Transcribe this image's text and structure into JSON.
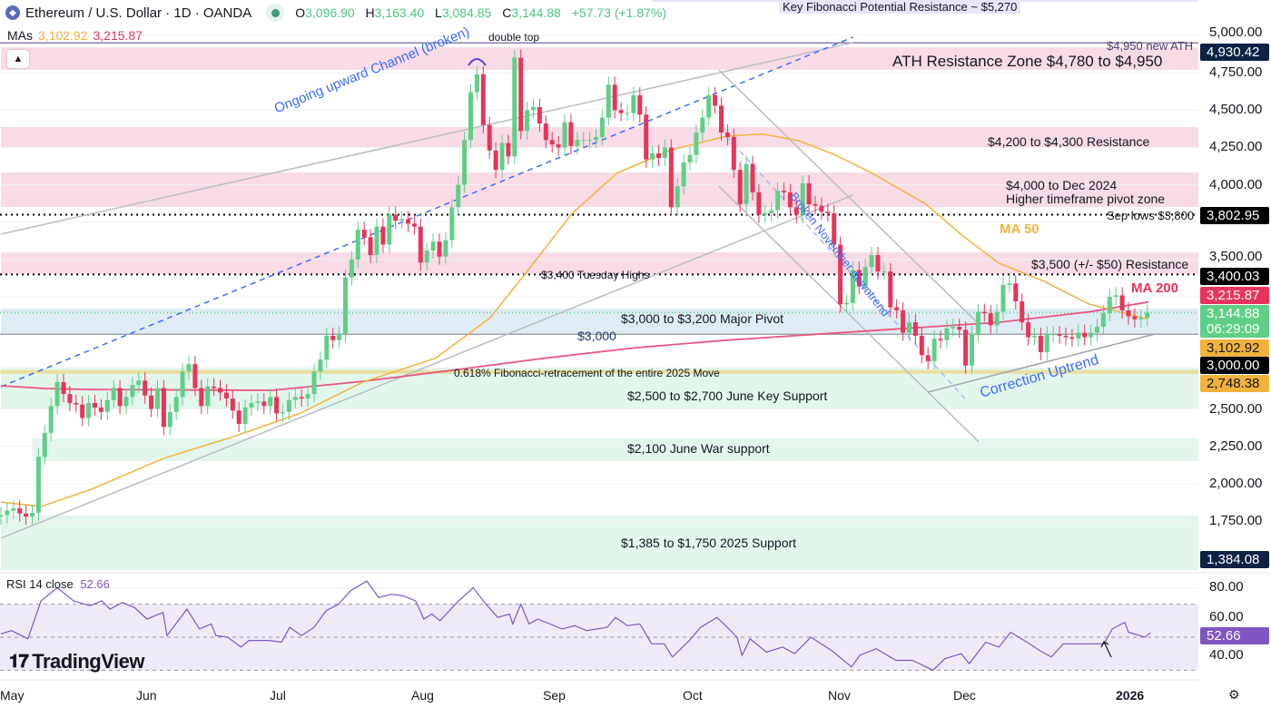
{
  "header": {
    "symbol": "Ethereum / U.S. Dollar · 1D · OANDA",
    "o_label": "O",
    "o": "3,096.90",
    "h_label": "H",
    "h": "3,163.40",
    "l_label": "L",
    "l": "3,084.85",
    "c_label": "C",
    "c": "3,144.88",
    "change": "+57.73 (+1.87%)",
    "mas_label": "MAs",
    "ma50": "3,102.92",
    "ma200": "3,215.87",
    "collapse_icon": "chevron-up-icon"
  },
  "annotations": {
    "fib_top": "Key Fibonacci Potential Resistance ~ $5,270",
    "ath_line": "$4,950 new ATH",
    "ath_zone": "ATH Resistance Zone $4,780 to $4,950",
    "double_top": "double top",
    "res_4200": "$4,200 to $4,300 Resistance",
    "pivot_4000_a": "$4,000 to Dec 2024",
    "pivot_4000_b": "Higher timeframe pivot zone",
    "sep_lows": "Sep lows $3,800",
    "ma50": "MA 50",
    "res_3500": "$3,500 (+/- $50) Resistance",
    "tuesday_highs": "$3,400 Tuesday Highs",
    "ma200": "MA 200",
    "major_pivot": "$3,000 to $3,200 Major Pivot",
    "line_3000": "$3,000",
    "fib_618": "0.618% Fibonacci-retracement of the entire 2025 Move",
    "june_support": "$2,500 to $2,700 June Key Support",
    "war_support": "$2,100 June War support",
    "support_2025": "$1,385 to $1,750 2025 Support",
    "channel": "Ongoing upward Channel (broken)",
    "nov_downtrend": "Broken November downtrend",
    "correction": "Correction Uptrend"
  },
  "price_axis": {
    "ticks": [
      "5,000.00",
      "4,750.00",
      "4,500.00",
      "4,250.00",
      "4,000.00",
      "3,500.00",
      "2,500.00",
      "2,250.00",
      "2,000.00",
      "1,750.00"
    ],
    "tags": [
      {
        "value": "4,930.42",
        "color": "#0d2244"
      },
      {
        "value": "3,802.95",
        "color": "#000000"
      },
      {
        "value": "3,400.03",
        "color": "#000000"
      },
      {
        "value": "3,215.87",
        "color": "#e8345a"
      },
      {
        "value": "3,144.88",
        "color": "#5fcf87",
        "sub": "06:29:09"
      },
      {
        "value": "3,102.92",
        "color": "#f2b33d",
        "dark": true
      },
      {
        "value": "3,000.00",
        "color": "#000000"
      },
      {
        "value": "2,748.38",
        "color": "#f2b33d",
        "dark": true
      },
      {
        "value": "1,384.08",
        "color": "#0d2244"
      }
    ]
  },
  "time_axis": [
    "May",
    "Jun",
    "Jul",
    "Aug",
    "Sep",
    "Oct",
    "Nov",
    "Dec",
    "2026"
  ],
  "rsi": {
    "label": "RSI 14 close",
    "value": "52.66",
    "ticks": [
      "80.00",
      "60.00",
      "40.00"
    ],
    "levels": [
      70,
      50,
      30
    ],
    "color": "#7e57c2"
  },
  "branding": {
    "logo": "TradingView"
  },
  "colors": {
    "up": "#5fcf87",
    "down": "#e8345a",
    "ma50": "#f2b33d",
    "ma200": "#e8577f",
    "drawing_blue": "#3d6bf5"
  },
  "chart_data": {
    "type": "candlestick",
    "title": "Ethereum / U.S. Dollar · 1D · OANDA",
    "ylim": [
      1250,
      5300
    ],
    "y_scale": "linear",
    "first_open": 1780,
    "closes": [
      1790,
      1820,
      1835,
      1800,
      1780,
      1805,
      2180,
      2340,
      2520,
      2680,
      2600,
      2540,
      2530,
      2440,
      2540,
      2510,
      2480,
      2560,
      2640,
      2520,
      2580,
      2660,
      2690,
      2590,
      2500,
      2640,
      2380,
      2480,
      2580,
      2750,
      2800,
      2640,
      2520,
      2650,
      2640,
      2610,
      2570,
      2490,
      2400,
      2510,
      2540,
      2550,
      2520,
      2580,
      2470,
      2480,
      2560,
      2580,
      2570,
      2600,
      2750,
      2830,
      2990,
      2960,
      3000,
      3380,
      3500,
      3700,
      3650,
      3530,
      3720,
      3600,
      3800,
      3760,
      3770,
      3740,
      3720,
      3480,
      3560,
      3620,
      3520,
      3630,
      3850,
      4000,
      4300,
      4620,
      4740,
      4400,
      4230,
      4100,
      4280,
      4190,
      4850,
      4360,
      4500,
      4520,
      4410,
      4300,
      4270,
      4250,
      4420,
      4260,
      4300,
      4300,
      4300,
      4320,
      4450,
      4670,
      4500,
      4480,
      4480,
      4600,
      4470,
      4170,
      4210,
      4180,
      4250,
      3850,
      3990,
      4150,
      4200,
      4350,
      4450,
      4600,
      4530,
      4350,
      4320,
      4100,
      3870,
      4140,
      3950,
      3800,
      3810,
      3830,
      3960,
      3950,
      3850,
      3800,
      4010,
      3870,
      3860,
      3820,
      3810,
      3600,
      3200,
      3210,
      3430,
      3320,
      3450,
      3530,
      3420,
      3420,
      3180,
      3160,
      3010,
      3080,
      2990,
      2860,
      2820,
      2970,
      2960,
      3040,
      3050,
      3030,
      2790,
      3000,
      3150,
      3140,
      3060,
      3150,
      3330,
      3340,
      3220,
      3080,
      2980,
      2990,
      2880,
      3000,
      3000,
      2990,
      2980,
      2970,
      3010,
      2980,
      3010,
      3050,
      3140,
      3250,
      3260,
      3160,
      3120,
      3100,
      3110,
      3145
    ],
    "ma50": [
      [
        0,
        1877
      ],
      [
        6.4,
        1847
      ],
      [
        14.3,
        1960
      ],
      [
        26,
        2170
      ],
      [
        37.5,
        2320
      ],
      [
        47.7,
        2470
      ],
      [
        57.8,
        2680
      ],
      [
        69.4,
        2840
      ],
      [
        78.1,
        3110
      ],
      [
        83.9,
        3415
      ],
      [
        91.2,
        3810
      ],
      [
        98.4,
        4080
      ],
      [
        107.1,
        4235
      ],
      [
        115.8,
        4325
      ],
      [
        121.6,
        4340
      ],
      [
        127.4,
        4295
      ],
      [
        133.2,
        4200
      ],
      [
        139,
        4080
      ],
      [
        147.7,
        3870
      ],
      [
        153.5,
        3660
      ],
      [
        159.3,
        3475
      ],
      [
        166.5,
        3355
      ],
      [
        173.8,
        3200
      ],
      [
        179.6,
        3140
      ],
      [
        183,
        3103
      ]
    ],
    "ma200": [
      [
        0,
        2655
      ],
      [
        7.1,
        2637
      ],
      [
        14.3,
        2630
      ],
      [
        43.3,
        2625
      ],
      [
        57.8,
        2685
      ],
      [
        72.3,
        2760
      ],
      [
        86.8,
        2840
      ],
      [
        101.3,
        2910
      ],
      [
        115.8,
        2960
      ],
      [
        130.3,
        3000
      ],
      [
        144.8,
        3040
      ],
      [
        159.3,
        3080
      ],
      [
        173.8,
        3150
      ],
      [
        183.2,
        3216
      ]
    ],
    "zones": [
      {
        "name": "fib-potential-resistance",
        "from_bar": 103.9,
        "top": 5290,
        "bottom": 5225,
        "color": "#e8e4fb"
      },
      {
        "name": "ath-resistance",
        "from_bar": 0,
        "top": 4920,
        "bottom": 4770,
        "color": "#f8dbe5"
      },
      {
        "name": "resistance-4200",
        "from_bar": 0,
        "top": 4386,
        "bottom": 4247,
        "color": "#f8dbe5"
      },
      {
        "name": "pivot-4000",
        "from_bar": 0,
        "top": 4083,
        "bottom": 3852,
        "color": "#f8dbe5"
      },
      {
        "name": "resistance-3500",
        "from_bar": 0,
        "top": 3548,
        "bottom": 3402,
        "color": "#f8dbe5"
      },
      {
        "name": "major-pivot",
        "from_bar": 0,
        "top": 3172,
        "bottom": 2995,
        "color": "#dfecf3"
      },
      {
        "name": "june-key-support",
        "from_bar": 0,
        "top": 2777,
        "bottom": 2503,
        "color": "#e3f6ec"
      },
      {
        "name": "june-war-support",
        "from_bar": 5,
        "top": 2303,
        "bottom": 2151,
        "color": "#e3f6ec"
      },
      {
        "name": "support-2025",
        "from_bar": 0,
        "top": 1786,
        "bottom": 1422,
        "color": "#e3f6ec"
      }
    ],
    "hlines": [
      {
        "name": "ath-line",
        "price": 4950,
        "style": "solid",
        "color": "#8a7fa8"
      },
      {
        "name": "sep-lows-line",
        "price": 3800,
        "style": "dotted",
        "color": "#000000"
      },
      {
        "name": "tuesday-highs-line",
        "price": 3400,
        "style": "dotted",
        "color": "#000000"
      },
      {
        "name": "line-3000",
        "price": 3000,
        "style": "solid",
        "color": "#a0a4ad"
      },
      {
        "name": "fib-618-line",
        "price": 2748,
        "style": "solid",
        "color": "#ead98a"
      },
      {
        "name": "last-price-line",
        "price": 3144.88,
        "style": "dotted",
        "color": "#5fcf87"
      }
    ],
    "trendlines": [
      {
        "name": "channel-upper",
        "p1": [
          0,
          3670
        ],
        "p2": [
          136,
          4951
        ],
        "color": "#b8bcc6",
        "dash": false
      },
      {
        "name": "channel-lower",
        "p1": [
          0,
          1635
        ],
        "p2": [
          136,
          3931
        ],
        "color": "#b8bcc6",
        "dash": false
      },
      {
        "name": "channel-mid-dashed",
        "p1": [
          0,
          2649
        ],
        "p2": [
          136,
          4988
        ],
        "color": "#3d6bf5",
        "dash": true
      },
      {
        "name": "nov-downtrend-upper",
        "p1": [
          114.6,
          4769
        ],
        "p2": [
          156.1,
          3068
        ],
        "color": "#b8bcc6",
        "dash": false
      },
      {
        "name": "nov-downtrend-lower",
        "p1": [
          114.6,
          3992
        ],
        "p2": [
          156.1,
          2279
        ],
        "color": "#b8bcc6",
        "dash": false
      },
      {
        "name": "nov-downtrend-mid",
        "p1": [
          115.8,
          4326
        ],
        "p2": [
          154,
          2564
        ],
        "color": "#aab8f0",
        "dash": true
      },
      {
        "name": "correction-uptrend",
        "p1": [
          148,
          2613
        ],
        "p2": [
          184.2,
          3001
        ],
        "color": "#a0a4ad",
        "dash": false
      }
    ],
    "rsi_values": [
      [
        0,
        52
      ],
      [
        1.7,
        54
      ],
      [
        4.3,
        49
      ],
      [
        6.4,
        72
      ],
      [
        9,
        80
      ],
      [
        11.6,
        72
      ],
      [
        14.2,
        69
      ],
      [
        16.1,
        72
      ],
      [
        17.4,
        67
      ],
      [
        19.4,
        71
      ],
      [
        21.3,
        68
      ],
      [
        23.3,
        61
      ],
      [
        25.9,
        65
      ],
      [
        26.5,
        51
      ],
      [
        29.7,
        67
      ],
      [
        31.7,
        55
      ],
      [
        33.6,
        58
      ],
      [
        34.3,
        51
      ],
      [
        36.2,
        50
      ],
      [
        38.3,
        44
      ],
      [
        39.6,
        48
      ],
      [
        42.8,
        48
      ],
      [
        44.8,
        47
      ],
      [
        46.1,
        56
      ],
      [
        48,
        51
      ],
      [
        50,
        56
      ],
      [
        51.9,
        66
      ],
      [
        53.9,
        70
      ],
      [
        55.8,
        78
      ],
      [
        58.4,
        84
      ],
      [
        60.3,
        74
      ],
      [
        62.3,
        76
      ],
      [
        64.2,
        75
      ],
      [
        66.2,
        72
      ],
      [
        67.5,
        61
      ],
      [
        68.8,
        64
      ],
      [
        70.1,
        60
      ],
      [
        72.8,
        71
      ],
      [
        75.4,
        80
      ],
      [
        77.2,
        71
      ],
      [
        79.3,
        62
      ],
      [
        81.2,
        64
      ],
      [
        81.7,
        58
      ],
      [
        83,
        70
      ],
      [
        84.3,
        58
      ],
      [
        85.7,
        61
      ],
      [
        89.6,
        55
      ],
      [
        91.6,
        57
      ],
      [
        93.5,
        54
      ],
      [
        96.8,
        56
      ],
      [
        98.1,
        62
      ],
      [
        100,
        57
      ],
      [
        102,
        58
      ],
      [
        103.9,
        46
      ],
      [
        105.9,
        46
      ],
      [
        107.2,
        38
      ],
      [
        109.9,
        48
      ],
      [
        111.7,
        56
      ],
      [
        114.3,
        62
      ],
      [
        115.7,
        57
      ],
      [
        117.5,
        50
      ],
      [
        118.3,
        39
      ],
      [
        119.6,
        49
      ],
      [
        122.2,
        41
      ],
      [
        124.8,
        44
      ],
      [
        126.7,
        40
      ],
      [
        129.3,
        50
      ],
      [
        132.6,
        42
      ],
      [
        135.8,
        32
      ],
      [
        137.1,
        39
      ],
      [
        139.7,
        43
      ],
      [
        142.9,
        36
      ],
      [
        145.5,
        36
      ],
      [
        148.8,
        30
      ],
      [
        150.7,
        37
      ],
      [
        153.3,
        40
      ],
      [
        154.6,
        34
      ],
      [
        157.2,
        47
      ],
      [
        159.3,
        44
      ],
      [
        161.2,
        53
      ],
      [
        163.8,
        47
      ],
      [
        165.8,
        42
      ],
      [
        167.7,
        38
      ],
      [
        169.6,
        46
      ],
      [
        172.9,
        46
      ],
      [
        176.1,
        46
      ],
      [
        177.4,
        55
      ],
      [
        179.4,
        59
      ],
      [
        180,
        53
      ],
      [
        182.6,
        50
      ],
      [
        183.5,
        52.66
      ]
    ],
    "rsi_range": [
      25,
      88
    ]
  }
}
